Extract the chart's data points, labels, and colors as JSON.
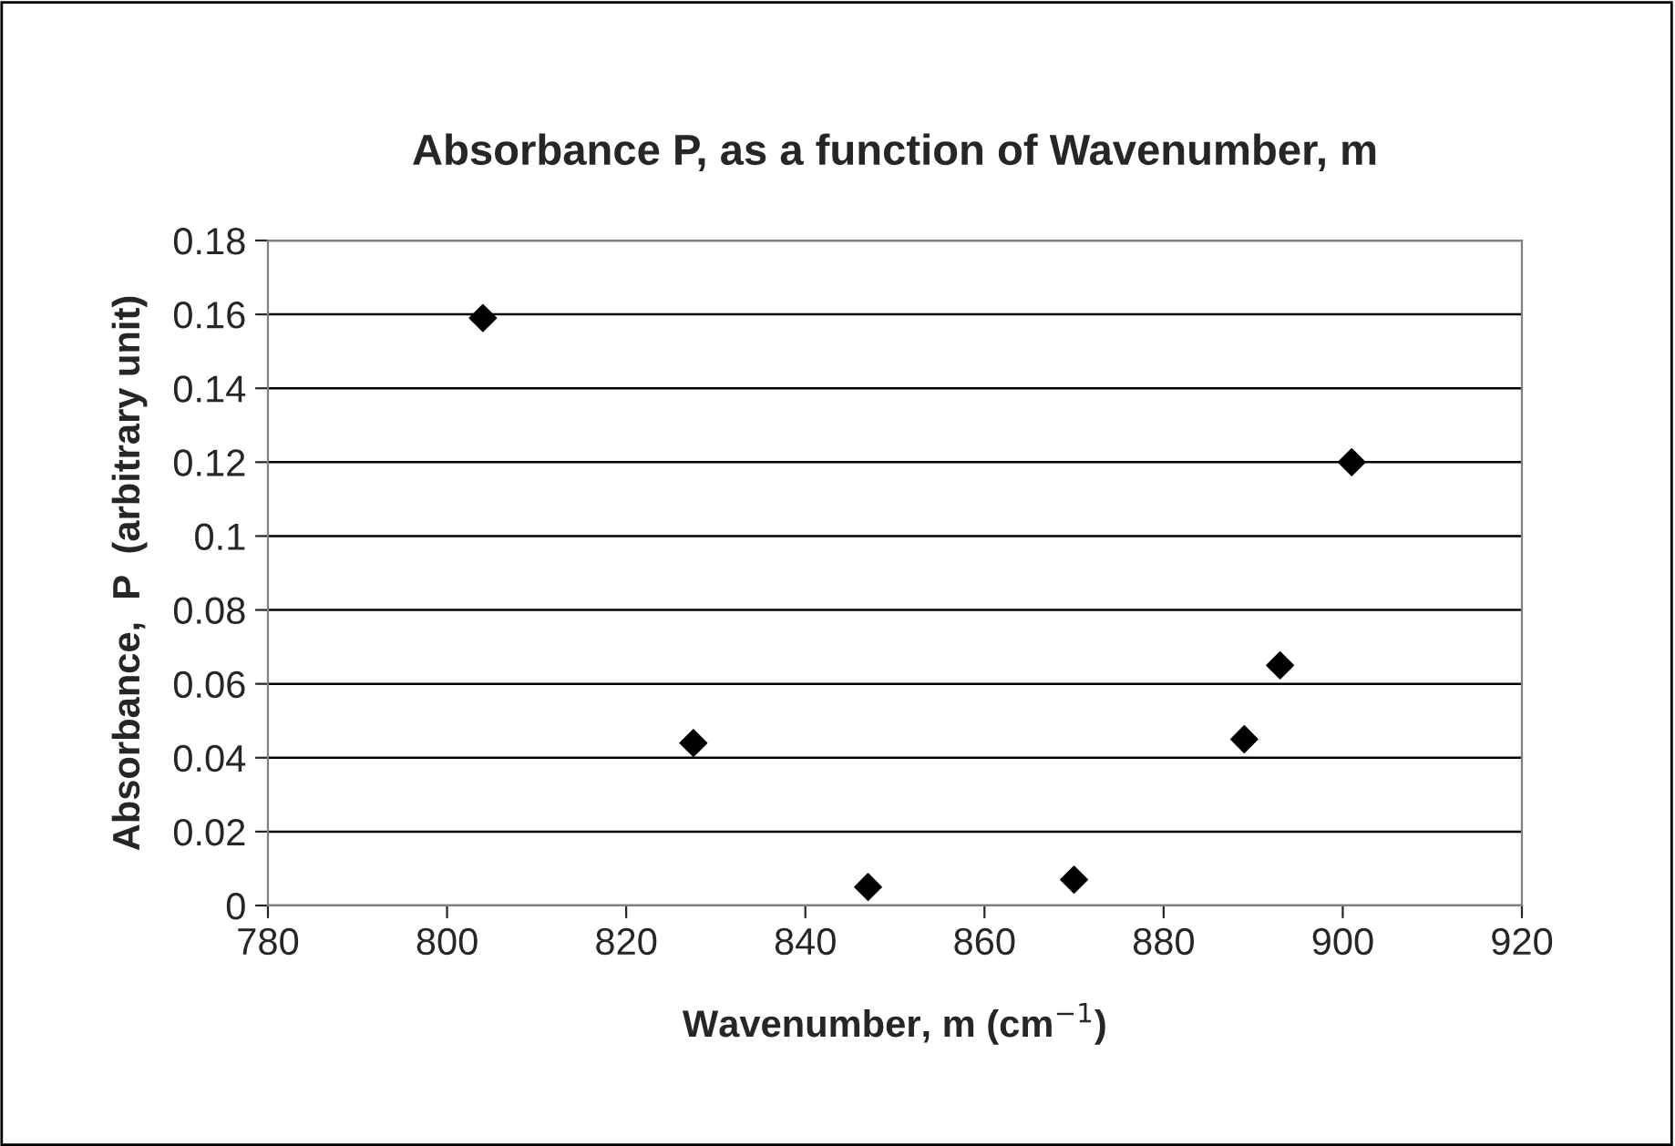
{
  "chart_data": {
    "type": "scatter",
    "title": "Absorbance P, as a function of Wavenumber, m",
    "xlabel": "Wavenumber, m (cm$^{−1}$)",
    "ylabel": "Absorbance,  P  (arbitrary unit)",
    "x": [
      804,
      827.5,
      847,
      870,
      889,
      893,
      901
    ],
    "series": [
      {
        "color": "#000000",
        "values": [
          0.159,
          0.044,
          0.005,
          0.007,
          0.045,
          0.065,
          0.12
        ]
      }
    ],
    "xlim": [
      780,
      920
    ],
    "xticks": [
      780,
      800,
      820,
      840,
      860,
      880,
      900,
      920
    ],
    "ylim": [
      0,
      0.18
    ],
    "yticks": [
      0,
      0.02,
      0.04,
      0.06,
      0.08,
      0.1,
      0.12,
      0.14,
      0.16,
      0.18
    ],
    "grid": "y",
    "marker": "diamond",
    "legend": false
  }
}
